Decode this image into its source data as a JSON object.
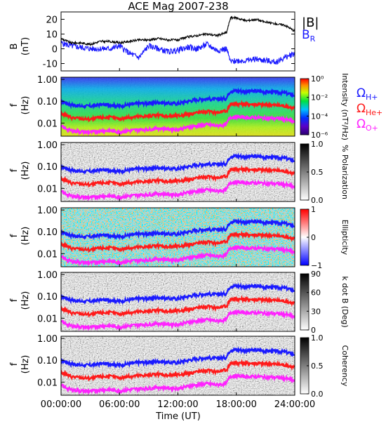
{
  "title": "ACE Mag 2007-238",
  "x_axis": {
    "label": "Time (UT)",
    "ticks": [
      "00:00:00",
      "06:00:00",
      "12:00:00",
      "18:00:00",
      "24:00:00"
    ],
    "range_hours": [
      0,
      24
    ]
  },
  "colors": {
    "B_total": "#000000",
    "B_R": "#1a1aff",
    "omega_H": "#1a1aff",
    "omega_He": "#ff1a1a",
    "omega_O": "#ff22ff"
  },
  "panel_B": {
    "ylabel": "B",
    "yunit": "(nT)",
    "yticks": [
      "20",
      "10",
      "0",
      "-10"
    ],
    "ylim": [
      -15,
      25
    ],
    "legend": {
      "total_main": "|B|",
      "radial_main": "B",
      "radial_sub": "R"
    }
  },
  "freq_axis": {
    "ylabel": "f",
    "yunit": "(Hz)",
    "yticks": [
      "1.00",
      "0.10",
      "0.01"
    ],
    "ylim_log": [
      -2.6,
      0.1
    ],
    "scale": "log"
  },
  "gyro_legend": {
    "omega": "Ω",
    "H_sub": "H+",
    "He_sub": "He+",
    "O_sub": "O+"
  },
  "colorbars": [
    {
      "id": "intensity",
      "label": "Intensity (nT²/Hz)",
      "ticks": [
        "10⁰",
        "10⁻²",
        "10⁻⁴",
        "10⁻⁶"
      ],
      "colormap": "rainbow",
      "range": "1e-6 to 1e0"
    },
    {
      "id": "polarization",
      "label": "% Polarization",
      "ticks": [
        "1.0",
        "0.5",
        "0.0"
      ],
      "colormap": "gray",
      "range": [
        0,
        1
      ]
    },
    {
      "id": "ellipticity",
      "label": "Ellipticity",
      "ticks": [
        "1",
        "0",
        "−1"
      ],
      "colormap": "blue-white-red",
      "range": [
        -1,
        1
      ]
    },
    {
      "id": "kdotb",
      "label": "k dot B (Deg)",
      "ticks": [
        "90",
        "60",
        "30",
        "0"
      ],
      "colormap": "gray",
      "range": [
        0,
        90
      ]
    },
    {
      "id": "coherency",
      "label": "Coherency",
      "ticks": [
        "1.0",
        "0.5",
        "0.0"
      ],
      "colormap": "gray",
      "range": [
        0,
        1
      ]
    }
  ],
  "chart_data": {
    "type": "line",
    "title": "ACE Mag 2007-238",
    "xlabel": "Time (UT)",
    "x_hours": [
      0,
      1,
      2,
      3,
      4,
      5,
      6,
      7,
      8,
      9,
      10,
      11,
      12,
      13,
      14,
      15,
      16,
      17,
      17.4,
      18,
      19,
      20,
      21,
      22,
      23,
      24
    ],
    "series": [
      {
        "name": "|B|",
        "units": "nT",
        "values": [
          7,
          4,
          4,
          3,
          5,
          5,
          4,
          5,
          6,
          6,
          7,
          6,
          6,
          8,
          9,
          10,
          9,
          11,
          21,
          21,
          19,
          20,
          18,
          17,
          16,
          12
        ]
      },
      {
        "name": "B_R",
        "units": "nT",
        "values": [
          4,
          2,
          1,
          0,
          0,
          0,
          2,
          -3,
          -6,
          2,
          0,
          -2,
          -1,
          1,
          0,
          3,
          -1,
          0,
          -9,
          -8,
          -8,
          -7,
          -8,
          -9,
          -6,
          -3
        ]
      },
      {
        "name": "Ω_H+",
        "units": "Hz",
        "values": [
          0.1,
          0.07,
          0.06,
          0.06,
          0.07,
          0.07,
          0.06,
          0.07,
          0.08,
          0.08,
          0.09,
          0.08,
          0.08,
          0.1,
          0.12,
          0.13,
          0.12,
          0.14,
          0.3,
          0.3,
          0.29,
          0.29,
          0.27,
          0.26,
          0.24,
          0.18
        ]
      },
      {
        "name": "Ω_He+",
        "units": "Hz",
        "values": [
          0.027,
          0.018,
          0.016,
          0.015,
          0.018,
          0.018,
          0.016,
          0.018,
          0.02,
          0.021,
          0.023,
          0.021,
          0.021,
          0.026,
          0.03,
          0.034,
          0.03,
          0.035,
          0.076,
          0.076,
          0.072,
          0.072,
          0.068,
          0.066,
          0.06,
          0.046
        ]
      },
      {
        "name": "Ω_O+",
        "units": "Hz",
        "values": [
          0.0068,
          0.0045,
          0.004,
          0.0038,
          0.0044,
          0.0045,
          0.004,
          0.0045,
          0.005,
          0.0052,
          0.0058,
          0.0053,
          0.0052,
          0.0064,
          0.0075,
          0.0085,
          0.0075,
          0.0088,
          0.019,
          0.019,
          0.018,
          0.018,
          0.017,
          0.0165,
          0.015,
          0.0115
        ]
      }
    ]
  }
}
